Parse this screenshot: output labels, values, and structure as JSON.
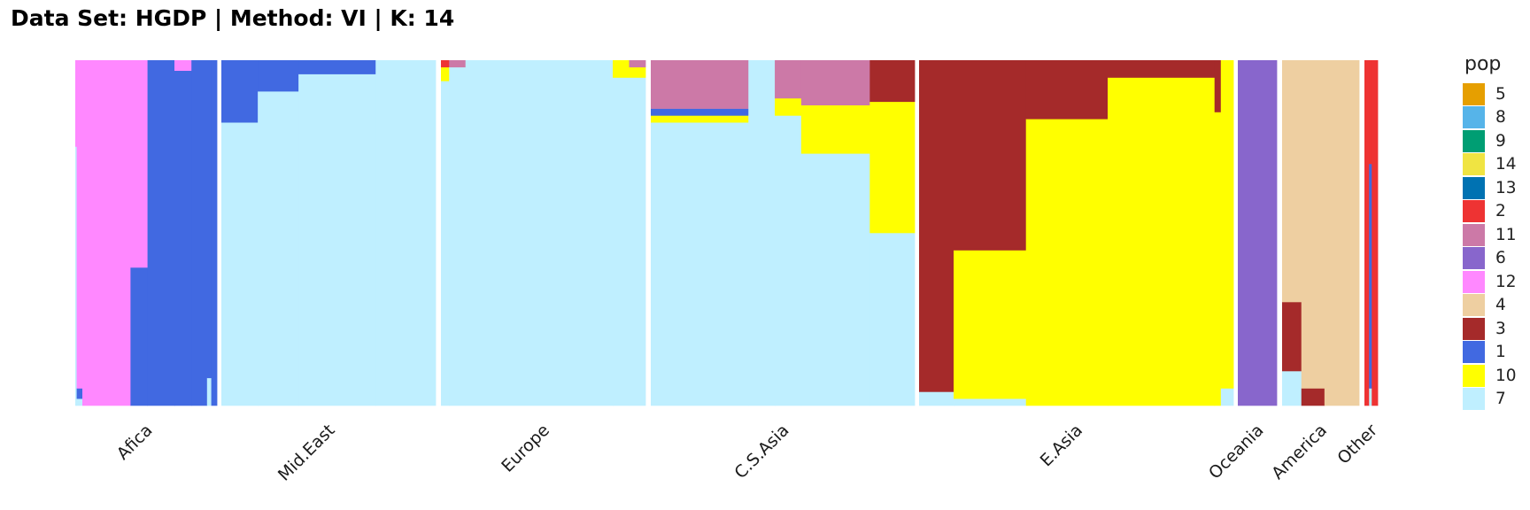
{
  "chart_data": {
    "type": "bar",
    "subtype": "stacked-admixture",
    "title": "Data Set: HGDP | Method: VI | K: 14",
    "legend_title": "pop",
    "legend_placement": "right",
    "legend": [
      {
        "name": "5",
        "color": "#E69F00"
      },
      {
        "name": "8",
        "color": "#56B4E9"
      },
      {
        "name": "9",
        "color": "#009E73"
      },
      {
        "name": "14",
        "color": "#F0E442"
      },
      {
        "name": "13",
        "color": "#0072B2"
      },
      {
        "name": "2",
        "color": "#EE3333"
      },
      {
        "name": "11",
        "color": "#CC79A7"
      },
      {
        "name": "6",
        "color": "#8866CC"
      },
      {
        "name": "12",
        "color": "#FF88FF"
      },
      {
        "name": "4",
        "color": "#EECFA1"
      },
      {
        "name": "3",
        "color": "#A52A2A"
      },
      {
        "name": "1",
        "color": "#4169E1"
      },
      {
        "name": "10",
        "color": "#FFFF00"
      },
      {
        "name": "7",
        "color": "#BFEFFF"
      }
    ],
    "ylim": [
      0,
      1
    ],
    "grid": false,
    "groups": [
      {
        "label": "Afica",
        "segments": [
          {
            "to": 0.01,
            "fractions": {
              "7": 0.75,
              "12": 0.25
            }
          },
          {
            "to": 0.05,
            "fractions": {
              "12": 0.95,
              "1": 0.03,
              "7": 0.02
            }
          },
          {
            "to": 0.39,
            "fractions": {
              "12": 1.0
            }
          },
          {
            "to": 0.51,
            "fractions": {
              "12": 0.6,
              "1": 0.4
            }
          },
          {
            "to": 0.7,
            "fractions": {
              "1": 1.0
            }
          },
          {
            "to": 0.82,
            "fractions": {
              "1": 0.97,
              "12": 0.03
            }
          },
          {
            "to": 0.93,
            "fractions": {
              "1": 1.0
            }
          },
          {
            "to": 0.96,
            "fractions": {
              "1": 0.92,
              "7": 0.08
            }
          },
          {
            "to": 1.0,
            "fractions": {
              "1": 1.0
            }
          }
        ]
      },
      {
        "label": "Mid.East",
        "segments": [
          {
            "to": 0.17,
            "fractions": {
              "1": 0.18,
              "7": 0.82
            }
          },
          {
            "to": 0.36,
            "fractions": {
              "1": 0.09,
              "7": 0.91
            }
          },
          {
            "to": 0.72,
            "fractions": {
              "1": 0.04,
              "7": 0.96
            }
          },
          {
            "to": 1.0,
            "fractions": {
              "7": 1.0
            }
          }
        ]
      },
      {
        "label": "Europe",
        "segments": [
          {
            "to": 0.04,
            "fractions": {
              "2": 0.02,
              "10": 0.04,
              "7": 0.94
            }
          },
          {
            "to": 0.12,
            "fractions": {
              "11": 0.02,
              "7": 0.98
            }
          },
          {
            "to": 0.84,
            "fractions": {
              "7": 1.0
            }
          },
          {
            "to": 0.92,
            "fractions": {
              "10": 0.05,
              "7": 0.95
            }
          },
          {
            "to": 1.0,
            "fractions": {
              "10": 0.03,
              "11": 0.02,
              "7": 0.95
            }
          }
        ]
      },
      {
        "label": "C.S.Asia",
        "segments": [
          {
            "to": 0.37,
            "fractions": {
              "11": 0.14,
              "1": 0.02,
              "10": 0.02,
              "7": 0.82
            }
          },
          {
            "to": 0.47,
            "fractions": {
              "7": 1.0
            }
          },
          {
            "to": 0.57,
            "fractions": {
              "11": 0.11,
              "10": 0.05,
              "7": 0.84
            }
          },
          {
            "to": 0.83,
            "fractions": {
              "11": 0.13,
              "10": 0.14,
              "7": 0.73
            }
          },
          {
            "to": 1.0,
            "fractions": {
              "3": 0.12,
              "10": 0.38,
              "7": 0.5
            }
          }
        ]
      },
      {
        "label": "E.Asia",
        "segments": [
          {
            "to": 0.11,
            "fractions": {
              "3": 0.96,
              "7": 0.04
            }
          },
          {
            "to": 0.34,
            "fractions": {
              "3": 0.55,
              "10": 0.43,
              "7": 0.02
            }
          },
          {
            "to": 0.6,
            "fractions": {
              "3": 0.17,
              "10": 0.83
            }
          },
          {
            "to": 0.94,
            "fractions": {
              "3": 0.05,
              "10": 0.95
            }
          },
          {
            "to": 0.96,
            "fractions": {
              "3": 0.15,
              "10": 0.85
            }
          },
          {
            "to": 1.0,
            "fractions": {
              "10": 0.95,
              "7": 0.05
            }
          }
        ]
      },
      {
        "label": "Oceania",
        "segments": [
          {
            "to": 1.0,
            "fractions": {
              "6": 1.0
            }
          }
        ]
      },
      {
        "label": "America",
        "segments": [
          {
            "to": 0.25,
            "fractions": {
              "3": 0.2,
              "7": 0.1,
              "4": 0.7
            }
          },
          {
            "to": 0.55,
            "fractions": {
              "3": 0.05,
              "4": 0.95
            }
          },
          {
            "to": 1.0,
            "fractions": {
              "4": 1.0
            }
          }
        ]
      },
      {
        "label": "Other",
        "segments": [
          {
            "to": 0.35,
            "fractions": {
              "2": 1.0
            }
          },
          {
            "to": 0.55,
            "fractions": {
              "1": 0.65,
              "7": 0.05,
              "2": 0.3
            }
          },
          {
            "to": 1.0,
            "fractions": {
              "2": 1.0
            }
          }
        ]
      }
    ]
  }
}
